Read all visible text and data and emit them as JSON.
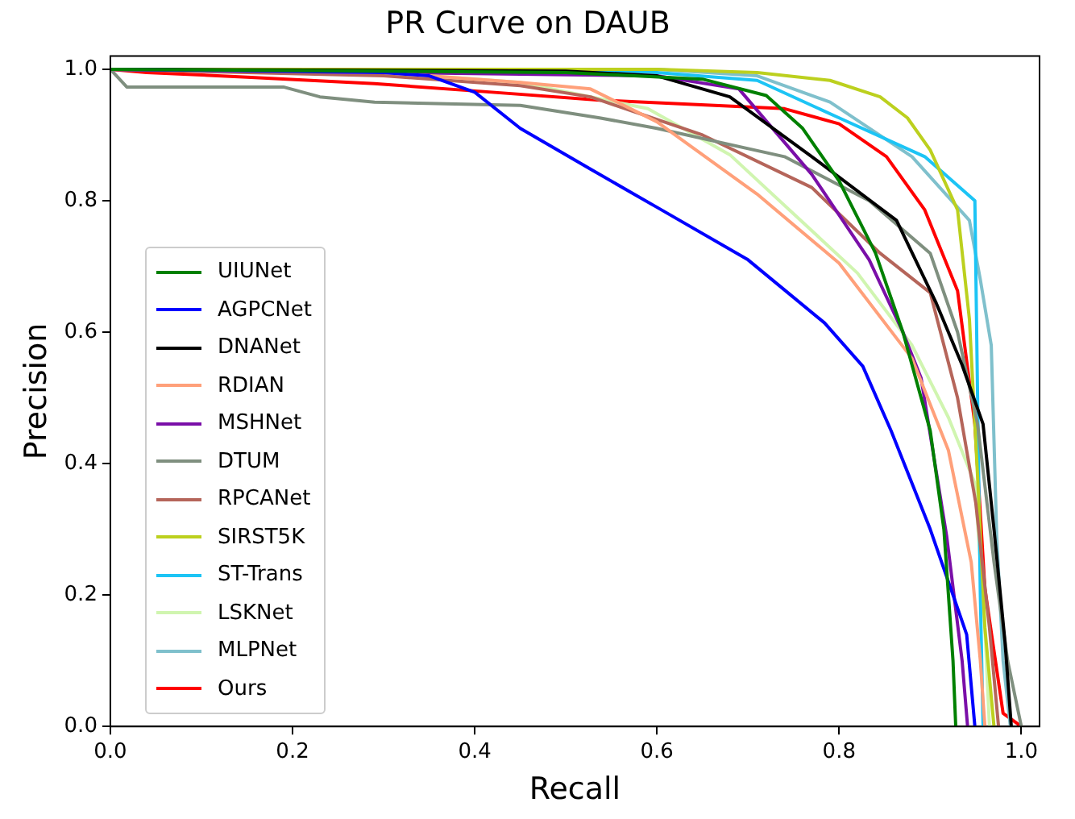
{
  "chart_data": {
    "type": "line",
    "title": "PR Curve on DAUB",
    "xlabel": "Recall",
    "ylabel": "Precision",
    "xlim": [
      0,
      1.02
    ],
    "ylim": [
      0,
      1.02
    ],
    "xticks": [
      {
        "value": 0,
        "label": "0.0"
      },
      {
        "value": 0.2,
        "label": "0.2"
      },
      {
        "value": 0.4,
        "label": "0.4"
      },
      {
        "value": 0.6,
        "label": "0.6"
      },
      {
        "value": 0.8,
        "label": "0.8"
      },
      {
        "value": 1,
        "label": "1.0"
      }
    ],
    "yticks": [
      {
        "value": 0,
        "label": "0.0"
      },
      {
        "value": 0.2,
        "label": "0.2"
      },
      {
        "value": 0.4,
        "label": "0.4"
      },
      {
        "value": 0.6,
        "label": "0.6"
      },
      {
        "value": 0.8,
        "label": "0.8"
      },
      {
        "value": 1,
        "label": "1.0"
      }
    ],
    "grid": false,
    "legend": "bottom left",
    "marker": "none",
    "line_style": "solid",
    "series": [
      {
        "name": "UIUNet",
        "color": "#008000",
        "x": [
          0,
          0.5,
          0.65,
          0.72,
          0.76,
          0.8,
          0.84,
          0.87,
          0.9,
          0.915,
          0.925,
          0.928
        ],
        "values": [
          1,
          0.995,
          0.985,
          0.96,
          0.91,
          0.83,
          0.72,
          0.6,
          0.45,
          0.3,
          0.1,
          0
        ]
      },
      {
        "name": "AGPCNet",
        "color": "#0000ff",
        "x": [
          0,
          0.3,
          0.35,
          0.4,
          0.45,
          0.527,
          0.6,
          0.7,
          0.784,
          0.826,
          0.857,
          0.9,
          0.94,
          0.949
        ],
        "values": [
          1,
          0.995,
          0.99,
          0.965,
          0.91,
          0.848,
          0.79,
          0.71,
          0.614,
          0.548,
          0.45,
          0.3,
          0.14,
          0
        ]
      },
      {
        "name": "DNANet",
        "color": "#000000",
        "x": [
          0,
          0.5,
          0.6,
          0.68,
          0.77,
          0.863,
          0.906,
          0.935,
          0.958,
          0.97,
          0.982,
          0.989
        ],
        "values": [
          1,
          0.997,
          0.99,
          0.958,
          0.867,
          0.77,
          0.646,
          0.55,
          0.46,
          0.3,
          0.13,
          0
        ]
      },
      {
        "name": "RDIAN",
        "color": "#ffa07a",
        "x": [
          0,
          0.3,
          0.45,
          0.527,
          0.6,
          0.71,
          0.8,
          0.88,
          0.92,
          0.945,
          0.955,
          0.96
        ],
        "values": [
          1,
          0.995,
          0.98,
          0.97,
          0.92,
          0.81,
          0.705,
          0.56,
          0.42,
          0.25,
          0.1,
          0
        ]
      },
      {
        "name": "MSHNet",
        "color": "#7a0fa8",
        "x": [
          0,
          0.6,
          0.69,
          0.77,
          0.833,
          0.87,
          0.89,
          0.918,
          0.935,
          0.941
        ],
        "values": [
          1,
          0.99,
          0.97,
          0.84,
          0.71,
          0.6,
          0.53,
          0.29,
          0.1,
          0
        ]
      },
      {
        "name": "DTUM",
        "color": "#7f8f7f",
        "x": [
          0,
          0.018,
          0.19,
          0.23,
          0.29,
          0.45,
          0.537,
          0.6,
          0.74,
          0.833,
          0.9,
          0.93,
          0.952,
          0.97,
          0.985,
          1.0
        ],
        "values": [
          1,
          0.973,
          0.973,
          0.958,
          0.95,
          0.945,
          0.926,
          0.91,
          0.867,
          0.8,
          0.72,
          0.6,
          0.46,
          0.25,
          0.1,
          0
        ]
      },
      {
        "name": "RPCANet",
        "color": "#b5655a",
        "x": [
          0,
          0.3,
          0.45,
          0.527,
          0.65,
          0.77,
          0.845,
          0.9,
          0.93,
          0.95,
          0.965,
          0.975
        ],
        "values": [
          1,
          0.99,
          0.975,
          0.958,
          0.9,
          0.82,
          0.72,
          0.66,
          0.5,
          0.34,
          0.15,
          0
        ]
      },
      {
        "name": "SIRST5K",
        "color": "#bcd01e",
        "x": [
          0,
          0.6,
          0.71,
          0.79,
          0.845,
          0.875,
          0.9,
          0.93,
          0.943,
          0.952,
          0.96,
          0.97
        ],
        "values": [
          1,
          1,
          0.995,
          0.983,
          0.958,
          0.926,
          0.877,
          0.786,
          0.62,
          0.38,
          0.15,
          0
        ]
      },
      {
        "name": "ST-Trans",
        "color": "#1cc4f5",
        "x": [
          0,
          0.5,
          0.6,
          0.71,
          0.8,
          0.894,
          0.949,
          0.952,
          0.955,
          0.958
        ],
        "values": [
          1,
          1,
          0.995,
          0.983,
          0.926,
          0.867,
          0.8,
          0.5,
          0.2,
          0
        ]
      },
      {
        "name": "LSKNet",
        "color": "#d0f5b0",
        "x": [
          0,
          0.3,
          0.45,
          0.59,
          0.68,
          0.75,
          0.82,
          0.88,
          0.92,
          0.949,
          0.96,
          0.965
        ],
        "values": [
          1,
          0.995,
          0.98,
          0.94,
          0.87,
          0.78,
          0.69,
          0.58,
          0.47,
          0.37,
          0.15,
          0
        ]
      },
      {
        "name": "MLPNet",
        "color": "#7fc0cc",
        "x": [
          0,
          0.6,
          0.71,
          0.79,
          0.88,
          0.943,
          0.955,
          0.967,
          0.973,
          0.98,
          0.988
        ],
        "values": [
          1,
          1,
          0.99,
          0.95,
          0.867,
          0.77,
          0.68,
          0.58,
          0.29,
          0.1,
          0
        ]
      },
      {
        "name": "Ours",
        "color": "#ff0000",
        "x": [
          0,
          0.04,
          0.15,
          0.29,
          0.41,
          0.537,
          0.74,
          0.8,
          0.852,
          0.894,
          0.93,
          0.949,
          0.96,
          0.98,
          1.0
        ],
        "values": [
          1,
          0.995,
          0.988,
          0.978,
          0.966,
          0.953,
          0.94,
          0.917,
          0.867,
          0.786,
          0.663,
          0.46,
          0.21,
          0.02,
          0
        ]
      }
    ]
  }
}
